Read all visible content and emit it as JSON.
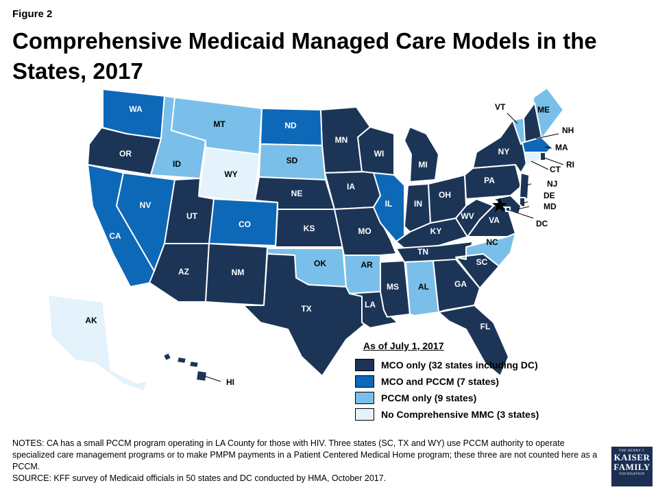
{
  "figure_label": "Figure 2",
  "title": "Comprehensive Medicaid Managed Care Models in the States, 2017",
  "categories": {
    "mco": {
      "label": "MCO only (32 states including DC)",
      "color": "#1c3557"
    },
    "mco_pccm": {
      "label": "MCO and PCCM (7 states)",
      "color": "#0d68b8"
    },
    "pccm": {
      "label": "PCCM only (9 states)",
      "color": "#79bfe9"
    },
    "none": {
      "label": "No Comprehensive MMC (3 states)",
      "color": "#e3f2fb"
    }
  },
  "legend": {
    "heading": "As of July 1, 2017",
    "order": [
      "mco",
      "mco_pccm",
      "pccm",
      "none"
    ]
  },
  "states": {
    "WA": "mco_pccm",
    "OR": "mco",
    "CA": "mco_pccm",
    "ID": "pccm",
    "NV": "mco_pccm",
    "MT": "pccm",
    "WY": "none",
    "UT": "mco",
    "AZ": "mco",
    "CO": "mco_pccm",
    "NM": "mco",
    "ND": "mco_pccm",
    "SD": "pccm",
    "NE": "mco",
    "KS": "mco",
    "OK": "pccm",
    "TX": "mco",
    "MN": "mco",
    "IA": "mco",
    "MO": "mco",
    "AR": "pccm",
    "LA": "mco",
    "WI": "mco",
    "IL": "mco_pccm",
    "MS": "mco",
    "MI": "mco",
    "IN": "mco",
    "KY": "mco",
    "TN": "mco",
    "AL": "pccm",
    "OH": "mco",
    "GA": "mco",
    "FL": "mco",
    "SC": "mco",
    "NC": "pccm",
    "VA": "mco",
    "WV": "mco",
    "PA": "mco",
    "NY": "mco",
    "ME": "pccm",
    "VT": "pccm",
    "NH": "mco",
    "MA": "mco_pccm",
    "RI": "mco",
    "CT": "none",
    "NJ": "mco",
    "DE": "mco",
    "MD": "mco",
    "DC": "mco",
    "AK": "none",
    "HI": "mco"
  },
  "notes": "NOTES: CA has a small PCCM program operating in LA County for those with HIV. Three states (SC, TX and WY) use PCCM authority to operate specialized care management programs or to make PMPM payments in a Patient Centered Medical Home program; these three are not counted here as a PCCM.",
  "source": "SOURCE: KFF survey of Medicaid officials in 50 states and DC conducted by HMA, October 2017.",
  "logo": {
    "line1": "THE HENRY J.",
    "line2a": "KAISER",
    "line2b": "FAMILY",
    "line3": "FOUNDATION"
  }
}
